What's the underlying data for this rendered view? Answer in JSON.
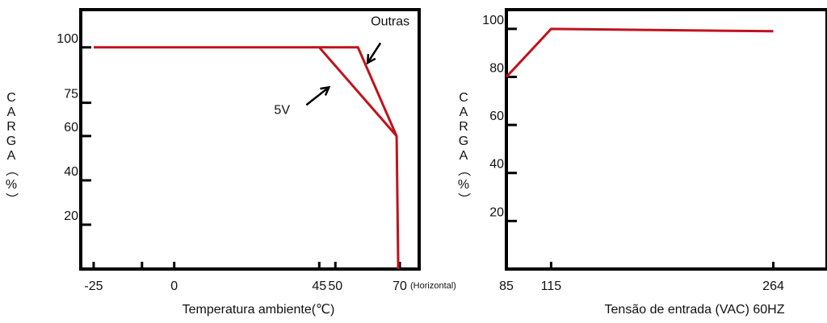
{
  "colors": {
    "curve": "#c0121b",
    "axes": "#000000",
    "text": "#111111"
  },
  "chart_data": [
    {
      "type": "line",
      "title": "",
      "xlabel": "Temperatura ambiente(℃)",
      "ylabel": "CARGA（%）",
      "x_note": "(Horizontal)",
      "xlim": [
        -29,
        76
      ],
      "ylim": [
        0,
        117
      ],
      "x_ticks": [
        {
          "value": -25,
          "label": "-25"
        },
        {
          "value": -10,
          "label": ""
        },
        {
          "value": 0,
          "label": "0"
        },
        {
          "value": 45,
          "label": "45"
        },
        {
          "value": 50,
          "label": "50"
        },
        {
          "value": 70,
          "label": "70"
        }
      ],
      "y_ticks": [
        {
          "value": 20,
          "label": "20"
        },
        {
          "value": 40,
          "label": "40"
        },
        {
          "value": 60,
          "label": "60"
        },
        {
          "value": 75,
          "label": "75"
        },
        {
          "value": 100,
          "label": "100"
        }
      ],
      "series": [
        {
          "name": "Outras",
          "x": [
            -25,
            45,
            57,
            69,
            69.5
          ],
          "y": [
            100,
            100,
            100,
            60,
            0
          ]
        },
        {
          "name": "5V",
          "x": [
            45,
            69
          ],
          "y": [
            100,
            60
          ]
        }
      ],
      "annotations": [
        {
          "text": "Outras",
          "x": 61,
          "y": 110,
          "arrow_from": [
            64,
            102
          ],
          "arrow_to": [
            60,
            93
          ]
        },
        {
          "text": "5V",
          "x": 31,
          "y": 70,
          "arrow_from": [
            41,
            74
          ],
          "arrow_to": [
            48,
            82
          ]
        }
      ]
    },
    {
      "type": "line",
      "title": "",
      "xlabel": "Tensão de entrada (VAC) 60HZ",
      "ylabel": "CARGA（%）",
      "xlim": [
        85,
        300
      ],
      "ylim": [
        0,
        108
      ],
      "x_ticks": [
        {
          "value": 85,
          "label": "85"
        },
        {
          "value": 115,
          "label": "115"
        },
        {
          "value": 264,
          "label": "264"
        }
      ],
      "y_ticks": [
        {
          "value": 20,
          "label": "20"
        },
        {
          "value": 40,
          "label": "40"
        },
        {
          "value": 60,
          "label": "60"
        },
        {
          "value": 80,
          "label": "80"
        },
        {
          "value": 100,
          "label": "100"
        }
      ],
      "series": [
        {
          "name": "",
          "x": [
            85,
            115,
            264
          ],
          "y": [
            80,
            100,
            99
          ]
        }
      ]
    }
  ]
}
